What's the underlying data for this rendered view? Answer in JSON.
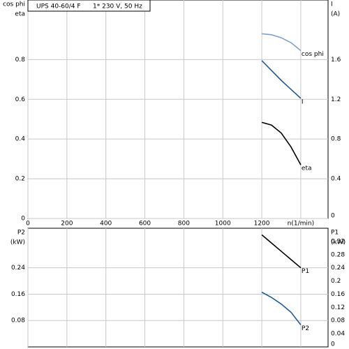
{
  "chart_data": [
    {
      "type": "line",
      "title": "UPS 40-60/4 F",
      "subtitle": "1* 230 V, 50 Hz",
      "ylabel": [
        "cos phi",
        "eta"
      ],
      "y2label": [
        "I",
        "(A)"
      ],
      "x": [
        1200,
        1250,
        1300,
        1350,
        1400
      ],
      "series": [
        {
          "name": "cos phi",
          "color": "#7f9fc8",
          "values": [
            0.93,
            0.925,
            0.91,
            0.885,
            0.845
          ]
        },
        {
          "name": "I",
          "color": "#1f5c9c",
          "axis": "y2",
          "values": [
            1.59,
            1.49,
            1.39,
            1.3,
            1.21
          ]
        },
        {
          "name": "eta",
          "color": "#000000",
          "values": [
            0.484,
            0.47,
            0.43,
            0.36,
            0.27
          ]
        }
      ],
      "xlim": [
        0,
        1540
      ],
      "xticks": [
        0,
        200,
        400,
        600,
        800,
        1000,
        1200,
        {
          "value": 1400,
          "label": "n(1/min)"
        }
      ],
      "ylim": [
        0,
        1.1
      ],
      "yticks": [
        0,
        0.2,
        0.4,
        0.6,
        0.8
      ],
      "y2lim": [
        0,
        2.2
      ],
      "y2ticks": [
        0,
        0.4,
        0.8,
        1.2,
        1.6
      ],
      "grid": true,
      "show_xtick_labels": true
    },
    {
      "type": "line",
      "ylabel": [
        "P2",
        "(kW)"
      ],
      "y2label": [
        "P1",
        "(kW)"
      ],
      "x": [
        1200,
        1250,
        1300,
        1350,
        1400
      ],
      "series": [
        {
          "name": "P1",
          "color": "#000000",
          "axis": "y2",
          "values": [
            0.34,
            0.315,
            0.29,
            0.265,
            0.24
          ]
        },
        {
          "name": "P2",
          "color": "#1f5c9c",
          "values": [
            0.166,
            0.15,
            0.13,
            0.105,
            0.067
          ]
        }
      ],
      "xlim": [
        0,
        1540
      ],
      "xticks": [
        0,
        200,
        400,
        600,
        800,
        1000,
        1200,
        1400
      ],
      "ylim": [
        0,
        0.36
      ],
      "yticks": [
        0.08,
        0.16,
        0.24
      ],
      "y2lim": [
        0,
        0.36
      ],
      "y2ticks": [
        0,
        0.04,
        0.08,
        0.12,
        0.16,
        0.2,
        0.24,
        0.28,
        0.32
      ],
      "grid": true,
      "show_xtick_labels": false
    }
  ]
}
